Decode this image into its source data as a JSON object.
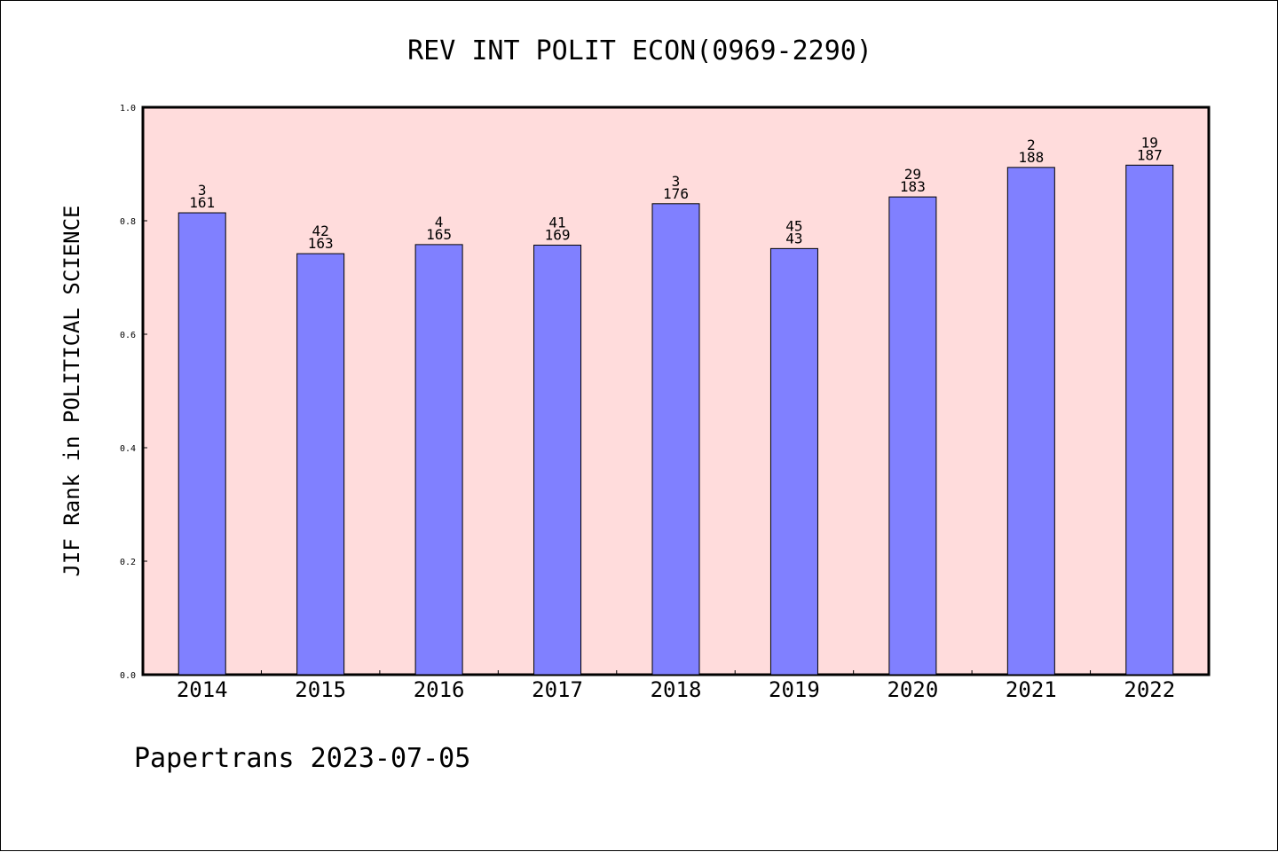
{
  "chart_data": {
    "type": "bar",
    "title": "REV INT POLIT ECON(0969-2290)",
    "xlabel": "",
    "ylabel": "JIF Rank in POLITICAL SCIENCE",
    "ylim": [
      0,
      1.0
    ],
    "yticks": [
      "0.0",
      "0.2",
      "0.4",
      "0.6",
      "0.8",
      "1.0"
    ],
    "ytick_values": [
      0,
      0.2,
      0.4,
      0.6,
      0.8,
      1.0
    ],
    "categories": [
      "2014",
      "2015",
      "2016",
      "2017",
      "2018",
      "2019",
      "2020",
      "2021",
      "2022"
    ],
    "values": [
      0.814,
      0.742,
      0.758,
      0.757,
      0.83,
      0.751,
      0.842,
      0.894,
      0.898
    ],
    "rank_labels": [
      "3",
      "42",
      "4",
      "41",
      "3",
      "45",
      "29",
      "2",
      "19"
    ],
    "total_labels": [
      "161",
      "163",
      "165",
      "169",
      "176",
      "43",
      "183",
      "188",
      "187"
    ],
    "grid": false,
    "legend": "none",
    "colors": {
      "plot_background": "#ffdcdc",
      "bar_fill": "#8080ff",
      "bar_stroke": "#000000",
      "text": "#000000"
    }
  },
  "footer": {
    "text": "Papertrans 2023-07-05"
  }
}
